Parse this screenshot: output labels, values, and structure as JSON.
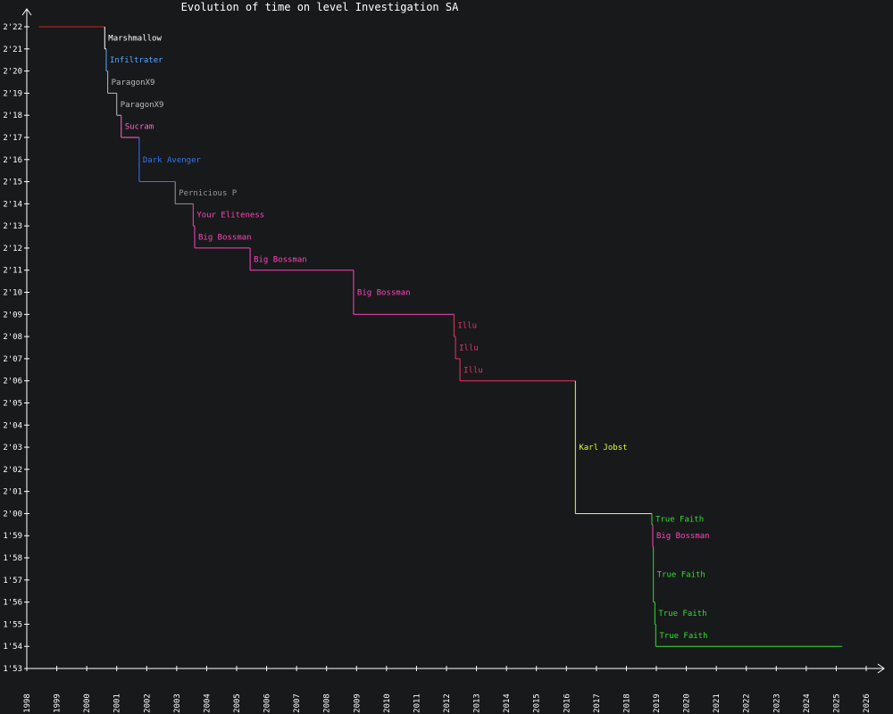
{
  "chart_data": {
    "type": "line",
    "title": "Evolution of time on level Investigation SA",
    "xlabel": "",
    "ylabel": "",
    "x_ticks": [
      "1998",
      "1999",
      "2000",
      "2001",
      "2002",
      "2003",
      "2004",
      "2005",
      "2006",
      "2007",
      "2008",
      "2009",
      "2010",
      "2011",
      "2012",
      "2013",
      "2014",
      "2015",
      "2016",
      "2017",
      "2018",
      "2019",
      "2020",
      "2021",
      "2022",
      "2023",
      "2024",
      "2025",
      "2026"
    ],
    "y_ticks": [
      "1'53",
      "1'54",
      "1'55",
      "1'56",
      "1'57",
      "1'58",
      "1'59",
      "2'00",
      "2'01",
      "2'02",
      "2'03",
      "2'04",
      "2'05",
      "2'06",
      "2'07",
      "2'08",
      "2'09",
      "2'10",
      "2'11",
      "2'12",
      "2'13",
      "2'14",
      "2'15",
      "2'16",
      "2'17",
      "2'18",
      "2'19",
      "2'20",
      "2'21",
      "2'22"
    ],
    "xlim": [
      1998,
      2026
    ],
    "ylim": [
      113,
      142
    ],
    "start": {
      "x": 1998.4,
      "y": 142,
      "color": "#cc2222"
    },
    "end_x": 2025.2,
    "records": [
      {
        "player": "Marshmallow",
        "x": 2000.6,
        "y": 141,
        "color": "#ffffff"
      },
      {
        "player": "Infiltrater",
        "x": 2000.65,
        "y": 140,
        "color": "#55aaff"
      },
      {
        "player": "ParagonX9",
        "x": 2000.7,
        "y": 139,
        "color": "#bbbbbb"
      },
      {
        "player": "ParagonX9",
        "x": 2001.0,
        "y": 138,
        "color": "#bbbbbb"
      },
      {
        "player": "Sucram",
        "x": 2001.15,
        "y": 137,
        "color": "#ff66cc"
      },
      {
        "player": "Dark Avenger",
        "x": 2001.75,
        "y": 135,
        "color": "#3377ee"
      },
      {
        "player": "Pernicious P",
        "x": 2002.95,
        "y": 134,
        "color": "#999999"
      },
      {
        "player": "Your Eliteness",
        "x": 2003.55,
        "y": 133,
        "color": "#ff44bb"
      },
      {
        "player": "Big Bossman",
        "x": 2003.6,
        "y": 132,
        "color": "#ff44bb"
      },
      {
        "player": "Big Bossman",
        "x": 2005.45,
        "y": 131,
        "color": "#ff44bb"
      },
      {
        "player": "Big Bossman",
        "x": 2008.9,
        "y": 129,
        "color": "#ff44bb"
      },
      {
        "player": "Illu",
        "x": 2012.25,
        "y": 128,
        "color": "#ee3366"
      },
      {
        "player": "Illu",
        "x": 2012.3,
        "y": 127,
        "color": "#ee3366"
      },
      {
        "player": "Illu",
        "x": 2012.45,
        "y": 126,
        "color": "#ee3366"
      },
      {
        "player": "Karl Jobst",
        "x": 2016.3,
        "y": 120,
        "color": "#ddff33"
      },
      {
        "player": "True Faith",
        "x": 2018.85,
        "y": 119.5,
        "color": "#33dd33"
      },
      {
        "player": "Big Bossman",
        "x": 2018.88,
        "y": 118.5,
        "color": "#ff44bb"
      },
      {
        "player": "True Faith",
        "x": 2018.9,
        "y": 116,
        "color": "#33dd33"
      },
      {
        "player": "True Faith",
        "x": 2018.95,
        "y": 115,
        "color": "#33dd33"
      },
      {
        "player": "True Faith",
        "x": 2018.98,
        "y": 114,
        "color": "#33dd33"
      }
    ],
    "grid": false,
    "legend": "none",
    "axis_color": "#ffffff",
    "background": "#18191b"
  }
}
